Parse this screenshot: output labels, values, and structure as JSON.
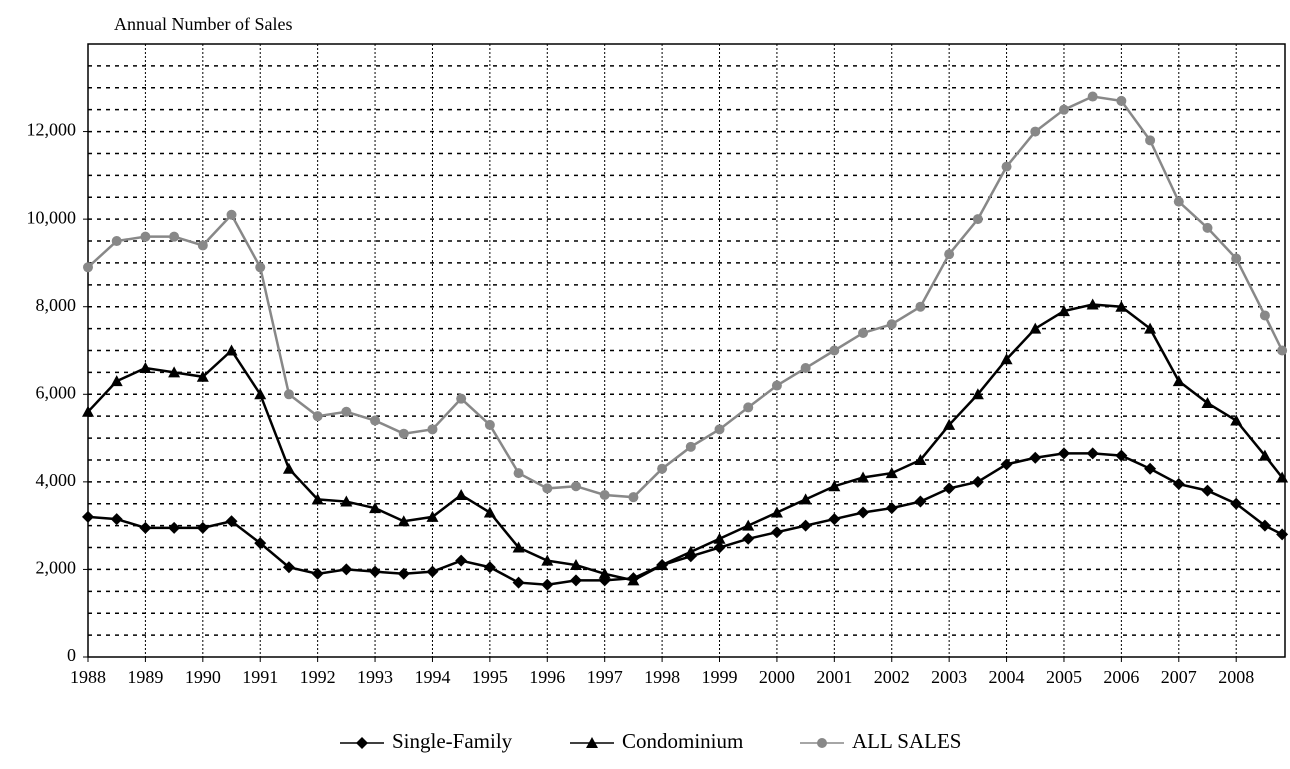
{
  "chart_data": {
    "type": "line",
    "y_label": "Annual Number of Sales",
    "x": [
      1988,
      1988.5,
      1989,
      1989.5,
      1990,
      1990.5,
      1991,
      1991.5,
      1992,
      1992.5,
      1993,
      1993.5,
      1994,
      1994.5,
      1995,
      1995.5,
      1996,
      1996.5,
      1997,
      1997.5,
      1998,
      1998.5,
      1999,
      1999.5,
      2000,
      2000.5,
      2001,
      2001.5,
      2002,
      2002.5,
      2003,
      2003.5,
      2004,
      2004.5,
      2005,
      2005.5,
      2006,
      2006.5,
      2007,
      2007.5,
      2008,
      2008.5,
      2008.8
    ],
    "series": [
      {
        "name": "Single-Family",
        "color": "#000000",
        "marker": "diamond",
        "values": [
          3200,
          3150,
          2950,
          2950,
          2950,
          3100,
          2600,
          2050,
          1900,
          2000,
          1950,
          1900,
          1950,
          2200,
          2050,
          1700,
          1650,
          1750,
          1750,
          1800,
          2100,
          2300,
          2500,
          2700,
          2850,
          3000,
          3150,
          3300,
          3400,
          3550,
          3850,
          4000,
          4400,
          4550,
          4650,
          4650,
          4600,
          4300,
          3950,
          3800,
          3500,
          3000,
          2800
        ]
      },
      {
        "name": "Condominium",
        "color": "#000000",
        "marker": "triangle",
        "values": [
          5600,
          6300,
          6600,
          6500,
          6400,
          7000,
          6000,
          4300,
          3600,
          3550,
          3400,
          3100,
          3200,
          3700,
          3300,
          2500,
          2200,
          2100,
          1900,
          1750,
          2100,
          2400,
          2700,
          3000,
          3300,
          3600,
          3900,
          4100,
          4200,
          4500,
          5300,
          6000,
          6800,
          7500,
          7900,
          8050,
          8000,
          7500,
          6300,
          5800,
          5400,
          4600,
          4100
        ]
      },
      {
        "name": "ALL SALES",
        "color": "#888888",
        "marker": "circle",
        "values": [
          8900,
          9500,
          9600,
          9600,
          9400,
          10100,
          8900,
          6000,
          5500,
          5600,
          5400,
          5100,
          5200,
          5900,
          5300,
          4200,
          3850,
          3900,
          3700,
          3650,
          4300,
          4800,
          5200,
          5700,
          6200,
          6600,
          7000,
          7400,
          7600,
          8000,
          9200,
          10000,
          11200,
          12000,
          12500,
          12800,
          12700,
          11800,
          10400,
          9800,
          9100,
          7800,
          7000
        ]
      }
    ],
    "xlim": [
      1988,
      2008.85
    ],
    "xticks": [
      1988,
      1989,
      1990,
      1991,
      1992,
      1993,
      1994,
      1995,
      1996,
      1997,
      1998,
      1999,
      2000,
      2001,
      2002,
      2003,
      2004,
      2005,
      2006,
      2007,
      2008
    ],
    "ylim": [
      0,
      14000
    ],
    "yticks": [
      0,
      {
        "value": 2000,
        "label": "2,000"
      },
      {
        "value": 4000,
        "label": "4,000"
      },
      {
        "value": 6000,
        "label": "6,000"
      },
      {
        "value": 8000,
        "label": "8,000"
      },
      {
        "value": 10000,
        "label": "10,000"
      },
      {
        "value": 12000,
        "label": "12,000"
      }
    ],
    "y_minor_grid": [
      500,
      1000,
      1500,
      2500,
      3000,
      3500,
      4500,
      5000,
      5500,
      6500,
      7000,
      7500,
      8500,
      9000,
      9500,
      10500,
      11000,
      11500,
      12500,
      13000,
      13500
    ],
    "grid": true,
    "legend": "bottom"
  }
}
